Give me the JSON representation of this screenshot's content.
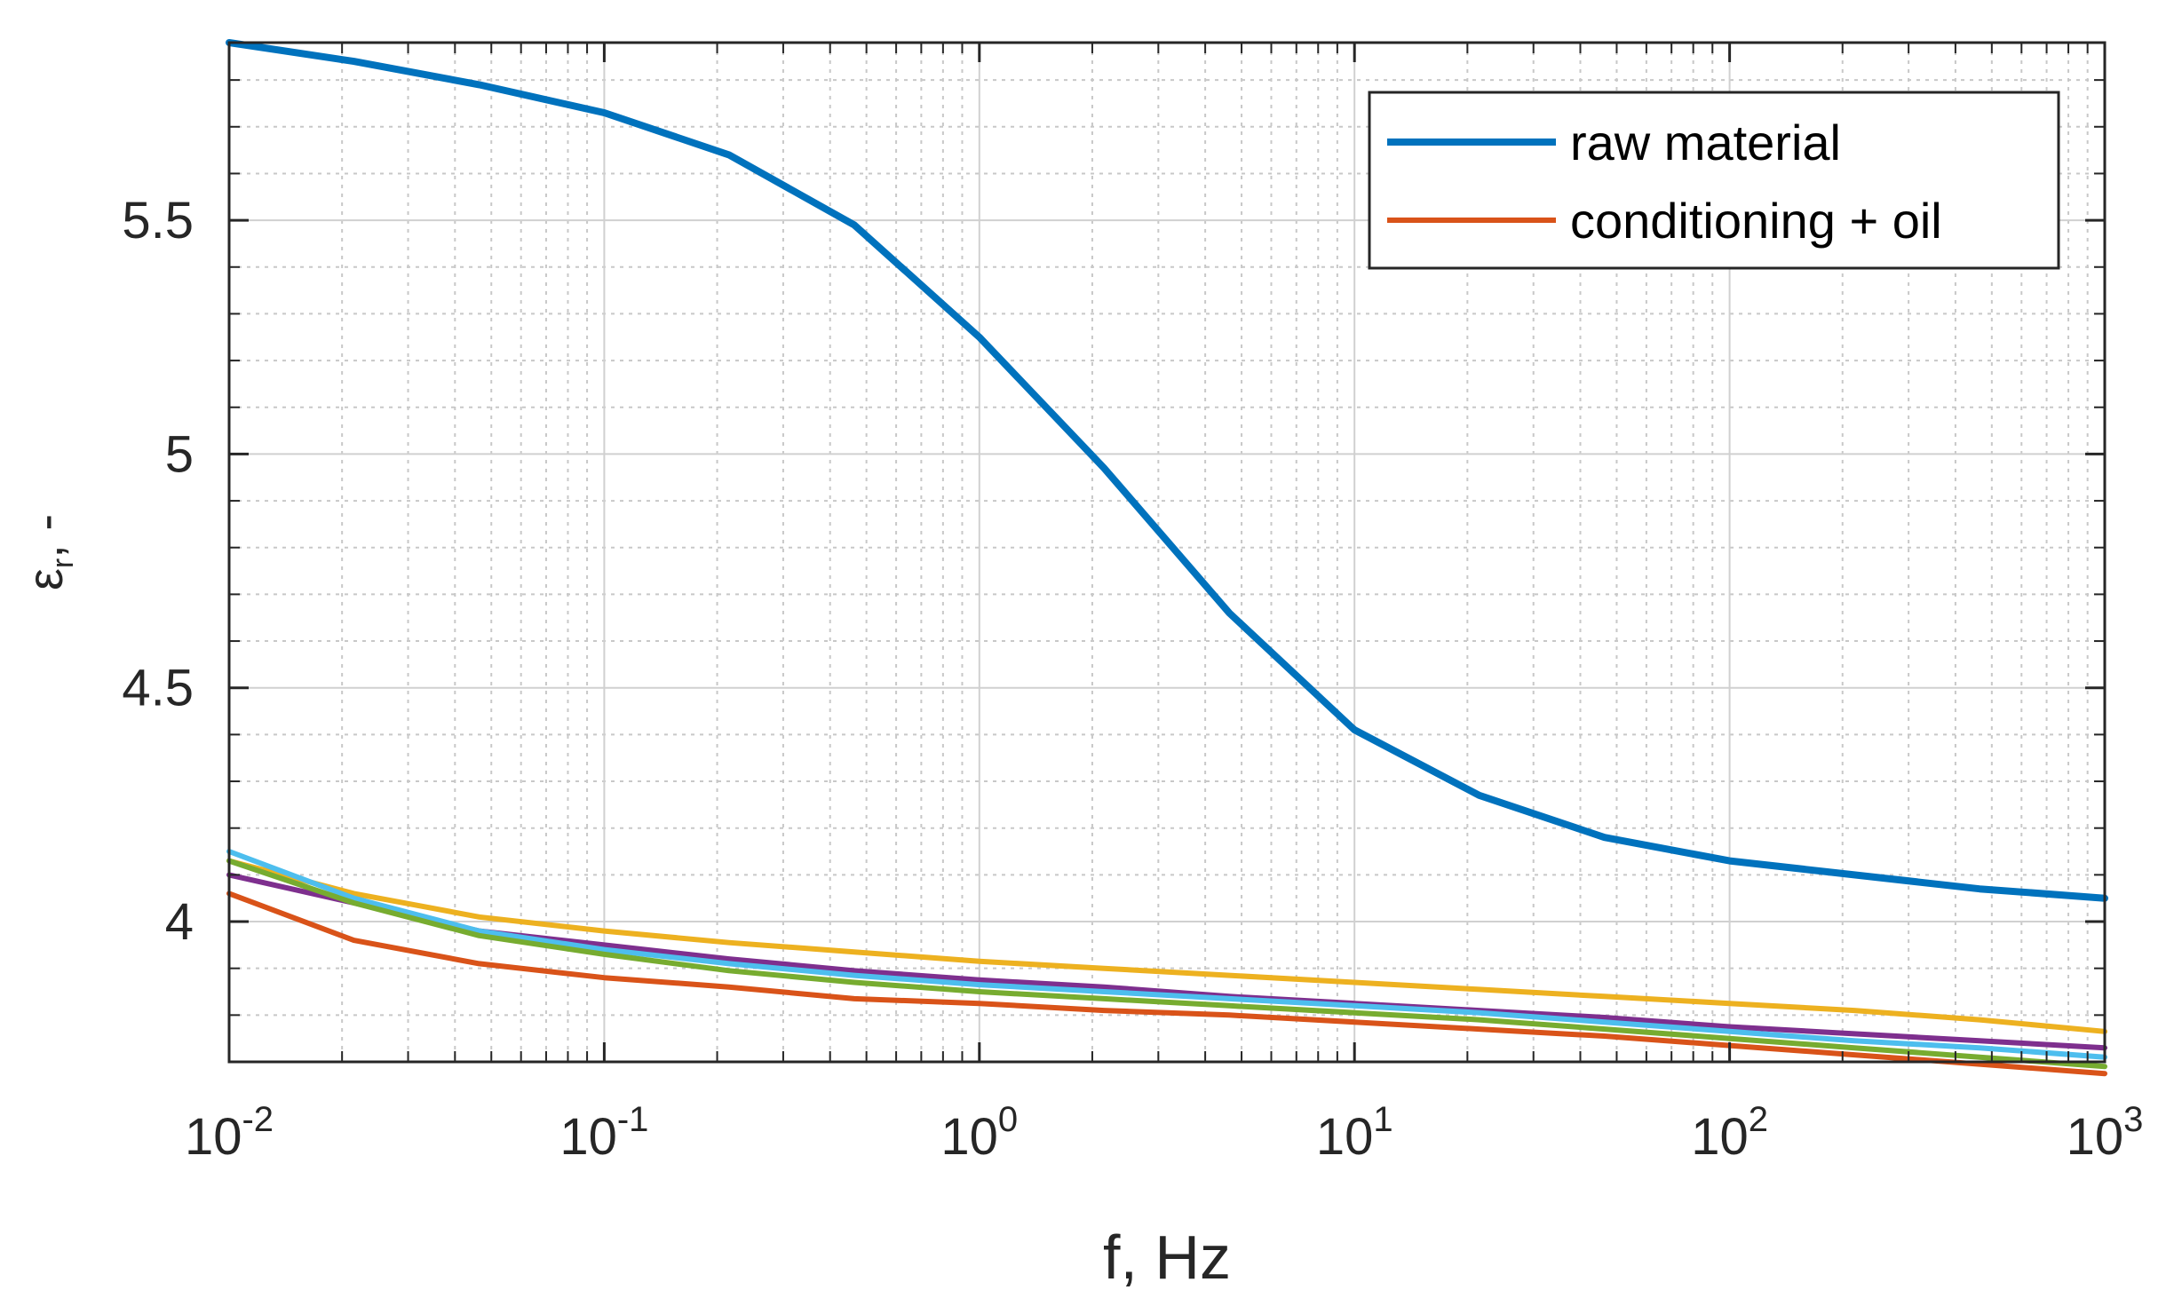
{
  "chart_data": {
    "type": "line",
    "title": "",
    "xlabel": "f, Hz",
    "ylabel": "ε r, -",
    "ylabel_symbol": "ε",
    "ylabel_subscript": "r",
    "ylabel_suffix": ", -",
    "xscale": "log",
    "xlim": [
      0.01,
      1000
    ],
    "ylim": [
      3.7,
      5.88
    ],
    "grid": true,
    "minor_grid": true,
    "x_ticks": [
      {
        "base": "10",
        "exp": "-2",
        "value": 0.01
      },
      {
        "base": "10",
        "exp": "-1",
        "value": 0.1
      },
      {
        "base": "10",
        "exp": "0",
        "value": 1
      },
      {
        "base": "10",
        "exp": "1",
        "value": 10
      },
      {
        "base": "10",
        "exp": "2",
        "value": 100
      },
      {
        "base": "10",
        "exp": "3",
        "value": 1000
      }
    ],
    "y_ticks": [
      {
        "label": "4",
        "value": 4
      },
      {
        "label": "4.5",
        "value": 4.5
      },
      {
        "label": "5",
        "value": 5
      },
      {
        "label": "5.5",
        "value": 5.5
      }
    ],
    "legend": {
      "position": "top-right",
      "entries": [
        {
          "label": "raw material",
          "color": "#0072BD"
        },
        {
          "label": "conditioning + oil",
          "color": "#D95319"
        }
      ]
    },
    "x": [
      0.01,
      0.0215,
      0.0464,
      0.1,
      0.215,
      0.464,
      1,
      2.15,
      4.64,
      10,
      21.5,
      46.4,
      100,
      215,
      464,
      1000
    ],
    "series": [
      {
        "name": "raw material",
        "color": "#0072BD",
        "in_legend": true,
        "values": [
          5.88,
          5.84,
          5.79,
          5.73,
          5.64,
          5.49,
          5.25,
          4.97,
          4.66,
          4.41,
          4.27,
          4.18,
          4.13,
          4.1,
          4.07,
          4.05
        ]
      },
      {
        "name": "series-yellow",
        "color": "#EDB120",
        "in_legend": false,
        "values": [
          4.13,
          4.06,
          4.01,
          3.98,
          3.955,
          3.935,
          3.915,
          3.9,
          3.885,
          3.87,
          3.855,
          3.84,
          3.825,
          3.81,
          3.79,
          3.765
        ]
      },
      {
        "name": "series-purple",
        "color": "#7E2F8E",
        "in_legend": false,
        "values": [
          4.1,
          4.04,
          3.98,
          3.95,
          3.92,
          3.895,
          3.875,
          3.86,
          3.84,
          3.825,
          3.81,
          3.795,
          3.775,
          3.76,
          3.745,
          3.73
        ]
      },
      {
        "name": "series-cyan",
        "color": "#4DBEEE",
        "in_legend": false,
        "values": [
          4.15,
          4.05,
          3.98,
          3.94,
          3.91,
          3.885,
          3.865,
          3.85,
          3.835,
          3.82,
          3.805,
          3.785,
          3.765,
          3.745,
          3.73,
          3.71
        ]
      },
      {
        "name": "series-green",
        "color": "#77AC30",
        "in_legend": false,
        "values": [
          4.13,
          4.04,
          3.97,
          3.93,
          3.895,
          3.87,
          3.85,
          3.835,
          3.82,
          3.805,
          3.79,
          3.77,
          3.75,
          3.73,
          3.71,
          3.69
        ]
      },
      {
        "name": "conditioning + oil",
        "color": "#D95319",
        "in_legend": true,
        "values": [
          4.06,
          3.96,
          3.91,
          3.88,
          3.86,
          3.835,
          3.825,
          3.81,
          3.8,
          3.785,
          3.77,
          3.755,
          3.735,
          3.715,
          3.695,
          3.675
        ]
      }
    ]
  }
}
